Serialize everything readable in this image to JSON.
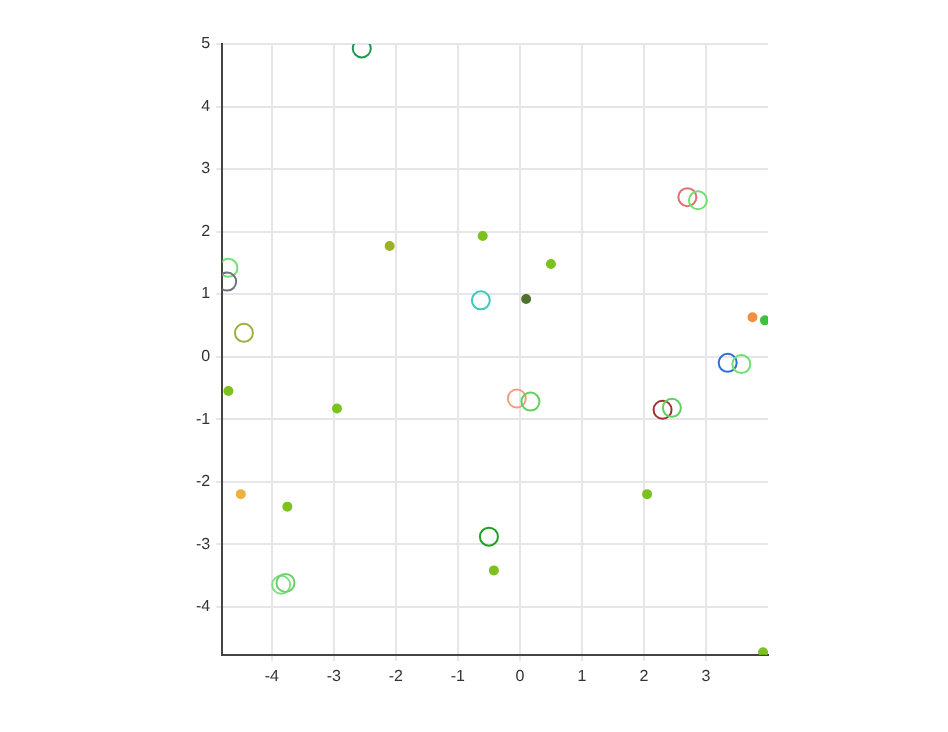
{
  "chart_data": {
    "type": "scatter",
    "xlim": [
      -4.8,
      4
    ],
    "ylim": [
      -4.77,
      5
    ],
    "xticks": [
      -4,
      -3,
      -2,
      -1,
      0,
      1,
      2,
      3
    ],
    "yticks": [
      -4,
      -3,
      -2,
      -1,
      0,
      1,
      2,
      3,
      4,
      5
    ],
    "grid": true,
    "legend": false,
    "marker": "circle",
    "series": [
      {
        "x": [
          -4.7,
          -4.5,
          -3.75,
          -2.95,
          -2.1,
          -0.6,
          0.5,
          0.1,
          -0.42,
          2.05,
          3.75,
          3.95,
          3.92
        ],
        "values": [
          -0.55,
          -2.2,
          -2.4,
          -0.83,
          1.77,
          1.93,
          1.48,
          0.92,
          -3.42,
          -2.2,
          0.63,
          0.58,
          -4.73
        ],
        "colors": [
          "#7cc21e",
          "#f0b040",
          "#7cc21e",
          "#7cc21e",
          "#a0b020",
          "#7cc21e",
          "#7cc21e",
          "#507030",
          "#7cc21e",
          "#7cc21e",
          "#f09040",
          "#40c040",
          "#7cc21e"
        ]
      },
      {
        "x": [
          -2.55,
          -4.7,
          -4.72,
          -4.45,
          -0.63,
          2.7,
          2.87,
          -0.05,
          0.17,
          2.3,
          2.45,
          3.35,
          3.57,
          -0.5,
          -3.85,
          -3.78
        ],
        "values": [
          4.93,
          1.42,
          1.2,
          0.38,
          0.9,
          2.55,
          2.5,
          -0.67,
          -0.72,
          -0.85,
          -0.82,
          -0.1,
          -0.12,
          -2.88,
          -3.65,
          -3.62
        ],
        "colors": [
          "#1a9a50",
          "#70e070",
          "#707080",
          "#a0b040",
          "#40c8c0",
          "#e07070",
          "#70e070",
          "#f0a080",
          "#60d060",
          "#a03030",
          "#60d060",
          "#3070d0",
          "#70e070",
          "#20a020",
          "#80e080",
          "#70d070"
        ]
      }
    ]
  }
}
